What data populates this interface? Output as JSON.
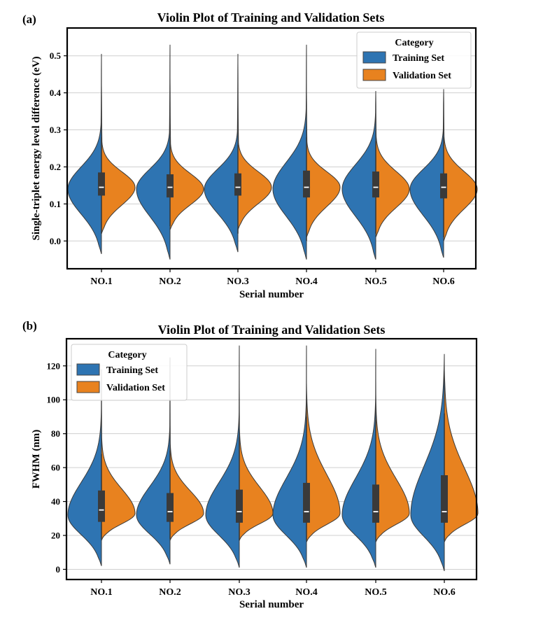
{
  "chart_data": [
    {
      "panel": "(a)",
      "type": "violin",
      "title": "Violin Plot of Training and Validation Sets",
      "xlabel": "Serial number",
      "ylabel": "Single-triplet energy level difference (eV)",
      "ylim": [
        -0.075,
        0.575
      ],
      "yticks": [
        0.0,
        0.1,
        0.2,
        0.3,
        0.4,
        0.5
      ],
      "ytick_labels": [
        "0.0",
        "0.1",
        "0.2",
        "0.3",
        "0.4",
        "0.5"
      ],
      "categories": [
        "NO.1",
        "NO.2",
        "NO.3",
        "NO.4",
        "NO.5",
        "NO.6"
      ],
      "legend": {
        "title": "Category",
        "placement": "upper right"
      },
      "grid": "horizontal",
      "series": [
        {
          "name": "Training Set",
          "color": "#2e74b2",
          "values": [
            {
              "min": -0.035,
              "q1": 0.12,
              "median": 0.145,
              "q3": 0.19,
              "max": 0.505,
              "peak": 0.14,
              "whisker_low": 0.02,
              "whisker_high": 0.28
            },
            {
              "min": -0.05,
              "q1": 0.115,
              "median": 0.145,
              "q3": 0.185,
              "max": 0.53,
              "peak": 0.14,
              "whisker_low": 0.04,
              "whisker_high": 0.28
            },
            {
              "min": -0.03,
              "q1": 0.12,
              "median": 0.145,
              "q3": 0.185,
              "max": 0.505,
              "peak": 0.14,
              "whisker_low": 0.02,
              "whisker_high": 0.26
            },
            {
              "min": -0.05,
              "q1": 0.115,
              "median": 0.145,
              "q3": 0.2,
              "max": 0.53,
              "peak": 0.14,
              "whisker_low": 0.0,
              "whisker_high": 0.28
            },
            {
              "min": -0.05,
              "q1": 0.115,
              "median": 0.145,
              "q3": 0.195,
              "max": 0.405,
              "peak": 0.14,
              "whisker_low": 0.02,
              "whisker_high": 0.27
            },
            {
              "min": -0.045,
              "q1": 0.11,
              "median": 0.145,
              "q3": 0.185,
              "max": 0.405,
              "peak": 0.14,
              "whisker_low": 0.01,
              "whisker_high": 0.28
            }
          ]
        },
        {
          "name": "Validation Set",
          "color": "#e8821f",
          "values": [
            {
              "min": 0.02,
              "q1": 0.125,
              "median": 0.15,
              "q3": 0.18,
              "max": 0.42,
              "peak": 0.145,
              "whisker_low": 0.03,
              "whisker_high": 0.25
            },
            {
              "min": 0.03,
              "q1": 0.12,
              "median": 0.145,
              "q3": 0.175,
              "max": 0.44,
              "peak": 0.14,
              "whisker_low": 0.04,
              "whisker_high": 0.25
            },
            {
              "min": 0.03,
              "q1": 0.125,
              "median": 0.15,
              "q3": 0.18,
              "max": 0.48,
              "peak": 0.145,
              "whisker_low": 0.04,
              "whisker_high": 0.25
            },
            {
              "min": 0.01,
              "q1": 0.12,
              "median": 0.15,
              "q3": 0.18,
              "max": 0.4,
              "peak": 0.145,
              "whisker_low": 0.02,
              "whisker_high": 0.25
            },
            {
              "min": 0.01,
              "q1": 0.12,
              "median": 0.145,
              "q3": 0.18,
              "max": 0.4,
              "peak": 0.14,
              "whisker_low": 0.02,
              "whisker_high": 0.24
            },
            {
              "min": 0.0,
              "q1": 0.12,
              "median": 0.145,
              "q3": 0.18,
              "max": 0.41,
              "peak": 0.14,
              "whisker_low": 0.01,
              "whisker_high": 0.24
            }
          ]
        }
      ]
    },
    {
      "panel": "(b)",
      "type": "violin",
      "title": "Violin Plot of Training and Validation Sets",
      "xlabel": "Serial number",
      "ylabel": "FWHM (nm)",
      "ylim": [
        -6,
        136
      ],
      "yticks": [
        0,
        20,
        40,
        60,
        80,
        100,
        120
      ],
      "ytick_labels": [
        "0",
        "20",
        "40",
        "60",
        "80",
        "100",
        "120"
      ],
      "categories": [
        "NO.1",
        "NO.2",
        "NO.3",
        "NO.4",
        "NO.5",
        "NO.6"
      ],
      "legend": {
        "title": "Category",
        "placement": "upper left"
      },
      "grid": "horizontal",
      "series": [
        {
          "name": "Training Set",
          "color": "#2e74b2",
          "values": [
            {
              "min": 2,
              "q1": 28,
              "median": 35,
              "q3": 48,
              "max": 115,
              "peak": 32,
              "whisker_low": 18,
              "whisker_high": 68
            },
            {
              "min": 3,
              "q1": 28,
              "median": 34,
              "q3": 46,
              "max": 125,
              "peak": 32,
              "whisker_low": 18,
              "whisker_high": 70
            },
            {
              "min": 1,
              "q1": 27,
              "median": 34,
              "q3": 48,
              "max": 132,
              "peak": 32,
              "whisker_low": 17,
              "whisker_high": 78
            },
            {
              "min": 1,
              "q1": 27,
              "median": 34,
              "q3": 50,
              "max": 132,
              "peak": 32,
              "whisker_low": 17,
              "whisker_high": 78
            },
            {
              "min": 1,
              "q1": 27,
              "median": 34,
              "q3": 50,
              "max": 130,
              "peak": 32,
              "whisker_low": 17,
              "whisker_high": 78
            },
            {
              "min": -1,
              "q1": 27,
              "median": 34,
              "q3": 56,
              "max": 127,
              "peak": 32,
              "whisker_low": 17,
              "whisker_high": 92
            }
          ]
        },
        {
          "name": "Validation Set",
          "color": "#e8821f",
          "values": [
            {
              "min": 17,
              "q1": 28,
              "median": 35,
              "q3": 45,
              "max": 118,
              "peak": 33,
              "whisker_low": 18,
              "whisker_high": 66
            },
            {
              "min": 17,
              "q1": 28,
              "median": 34,
              "q3": 44,
              "max": 110,
              "peak": 33,
              "whisker_low": 18,
              "whisker_high": 68
            },
            {
              "min": 17,
              "q1": 28,
              "median": 34,
              "q3": 46,
              "max": 108,
              "peak": 33,
              "whisker_low": 17,
              "whisker_high": 70
            },
            {
              "min": 16,
              "q1": 28,
              "median": 35,
              "q3": 52,
              "max": 110,
              "peak": 33,
              "whisker_low": 17,
              "whisker_high": 90
            },
            {
              "min": 16,
              "q1": 28,
              "median": 35,
              "q3": 50,
              "max": 112,
              "peak": 33,
              "whisker_low": 17,
              "whisker_high": 88
            },
            {
              "min": 16,
              "q1": 28,
              "median": 35,
              "q3": 55,
              "max": 118,
              "peak": 33,
              "whisker_low": 17,
              "whisker_high": 92
            }
          ]
        }
      ]
    }
  ]
}
